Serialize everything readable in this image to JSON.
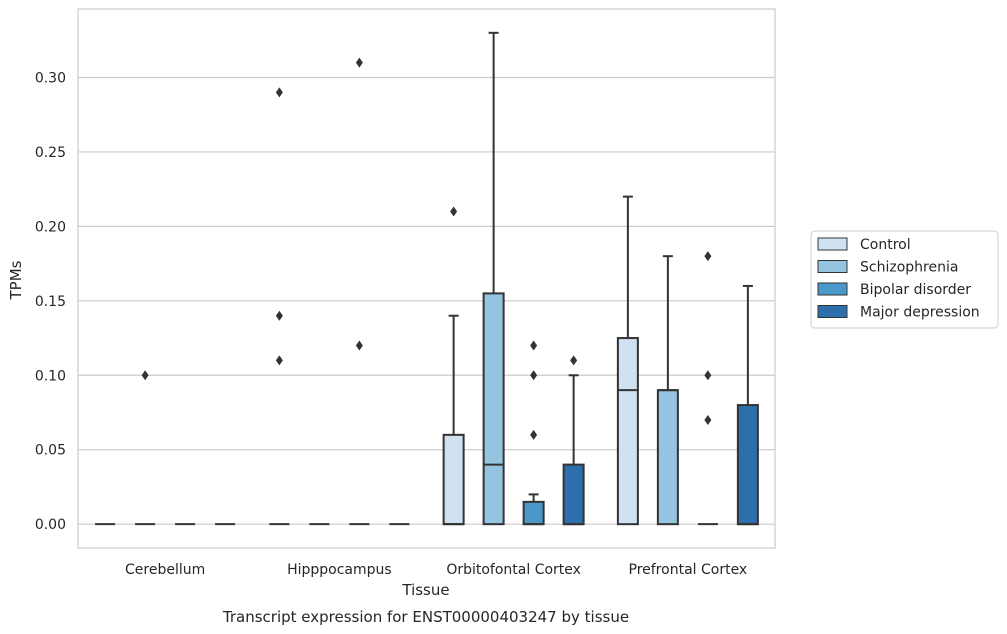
{
  "chart_data": {
    "type": "box",
    "title": "",
    "caption": "Transcript expression for ENST00000403247 by tissue",
    "xlabel": "Tissue",
    "ylabel": "TPMs",
    "ylim": [
      -0.016,
      0.346
    ],
    "yticks": [
      "0.00",
      "0.05",
      "0.10",
      "0.15",
      "0.20",
      "0.25",
      "0.30"
    ],
    "grid": true,
    "legend_position": "right",
    "categories": [
      "Cerebellum",
      "Hipppocampus",
      "Orbitofontal Cortex",
      "Prefrontal Cortex"
    ],
    "series": [
      {
        "name": "Control",
        "color": "#d0e1f2",
        "boxes": [
          {
            "q1": 0,
            "median": 0,
            "q3": 0,
            "whisker_low": 0,
            "whisker_high": 0,
            "outliers": []
          },
          {
            "q1": 0,
            "median": 0,
            "q3": 0,
            "whisker_low": 0,
            "whisker_high": 0,
            "outliers": [
              0.29,
              0.14,
              0.11
            ]
          },
          {
            "q1": 0,
            "median": 0,
            "q3": 0.06,
            "whisker_low": 0,
            "whisker_high": 0.14,
            "outliers": [
              0.21
            ]
          },
          {
            "q1": 0,
            "median": 0.09,
            "q3": 0.125,
            "whisker_low": 0,
            "whisker_high": 0.22,
            "outliers": []
          }
        ]
      },
      {
        "name": "Schizophrenia",
        "color": "#94c4df",
        "boxes": [
          {
            "q1": 0,
            "median": 0,
            "q3": 0,
            "whisker_low": 0,
            "whisker_high": 0,
            "outliers": [
              0.1
            ]
          },
          {
            "q1": 0,
            "median": 0,
            "q3": 0,
            "whisker_low": 0,
            "whisker_high": 0,
            "outliers": []
          },
          {
            "q1": 0,
            "median": 0.04,
            "q3": 0.155,
            "whisker_low": 0,
            "whisker_high": 0.33,
            "outliers": []
          },
          {
            "q1": 0,
            "median": 0.09,
            "q3": 0.09,
            "whisker_low": 0,
            "whisker_high": 0.18,
            "outliers": []
          }
        ]
      },
      {
        "name": "Bipolar disorder",
        "color": "#4a98c9",
        "boxes": [
          {
            "q1": 0,
            "median": 0,
            "q3": 0,
            "whisker_low": 0,
            "whisker_high": 0,
            "outliers": []
          },
          {
            "q1": 0,
            "median": 0,
            "q3": 0,
            "whisker_low": 0,
            "whisker_high": 0,
            "outliers": [
              0.31,
              0.12
            ]
          },
          {
            "q1": 0,
            "median": 0,
            "q3": 0.015,
            "whisker_low": 0,
            "whisker_high": 0.02,
            "outliers": [
              0.12,
              0.1,
              0.06
            ]
          },
          {
            "q1": 0,
            "median": 0,
            "q3": 0,
            "whisker_low": 0,
            "whisker_high": 0,
            "outliers": [
              0.18,
              0.1,
              0.07
            ]
          }
        ]
      },
      {
        "name": "Major depression",
        "color": "#2d6fad",
        "boxes": [
          {
            "q1": 0,
            "median": 0,
            "q3": 0,
            "whisker_low": 0,
            "whisker_high": 0,
            "outliers": []
          },
          {
            "q1": 0,
            "median": 0,
            "q3": 0,
            "whisker_low": 0,
            "whisker_high": 0,
            "outliers": []
          },
          {
            "q1": 0,
            "median": 0,
            "q3": 0.04,
            "whisker_low": 0,
            "whisker_high": 0.1,
            "outliers": [
              0.11
            ]
          },
          {
            "q1": 0,
            "median": 0,
            "q3": 0.08,
            "whisker_low": 0,
            "whisker_high": 0.16,
            "outliers": []
          }
        ]
      }
    ]
  }
}
